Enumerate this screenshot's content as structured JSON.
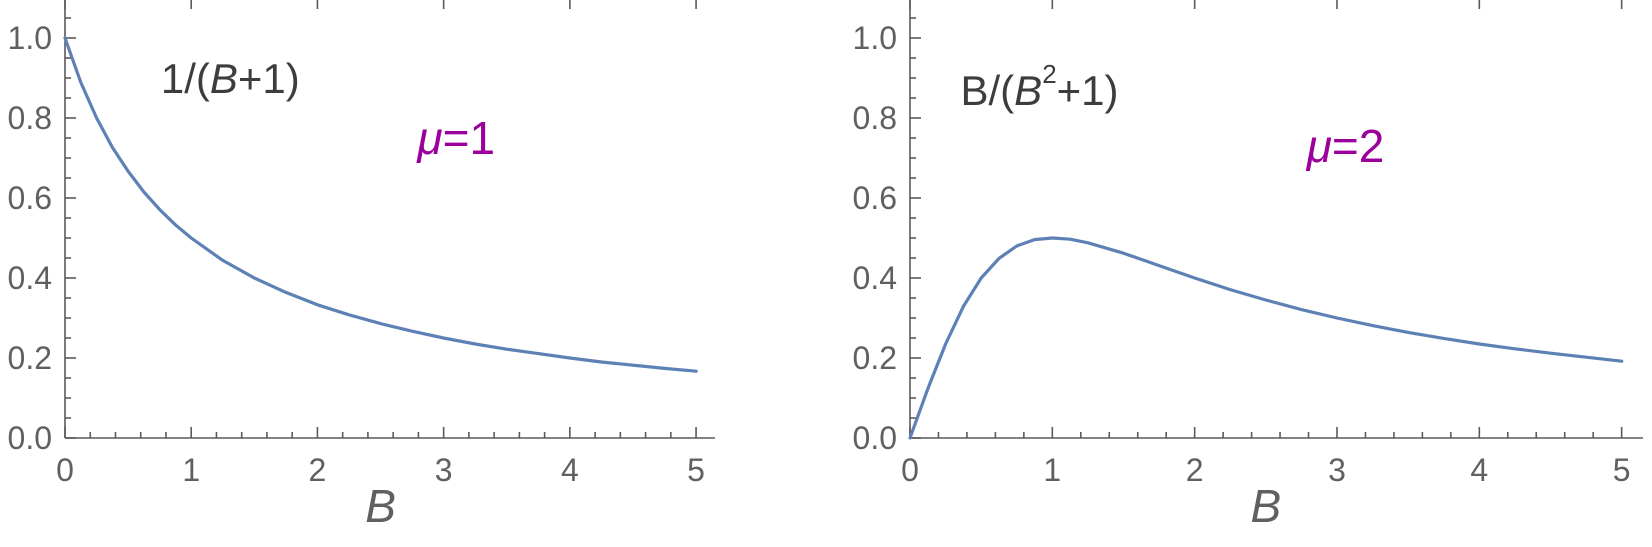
{
  "page": {
    "background": "#ffffff"
  },
  "chart_data": [
    {
      "type": "line",
      "title": "",
      "xlabel_parts": [
        {
          "t": "B",
          "italic": true
        }
      ],
      "xlim": [
        0,
        5.15
      ],
      "ylim": [
        0,
        1.05
      ],
      "grid": false,
      "legend": "none",
      "axis_color": "#5a5a5a",
      "tick_label_color": "#606060",
      "xticks": {
        "values": [
          0,
          1,
          2,
          3,
          4,
          5
        ],
        "labels": [
          "0",
          "1",
          "2",
          "3",
          "4",
          "5"
        ],
        "minor_step": 0.2
      },
      "yticks": {
        "values": [
          0,
          0.2,
          0.4,
          0.6,
          0.8,
          1.0
        ],
        "labels": [
          "0.0",
          "0.2",
          "0.4",
          "0.6",
          "0.8",
          "1.0"
        ],
        "minor_step": 0.05
      },
      "series": [
        {
          "name": "1/(B+1)",
          "color": "#5e81b5",
          "x": [
            0,
            0.125,
            0.25,
            0.375,
            0.5,
            0.625,
            0.75,
            0.875,
            1,
            1.25,
            1.5,
            1.75,
            2,
            2.25,
            2.5,
            2.75,
            3,
            3.25,
            3.5,
            3.75,
            4,
            4.25,
            4.5,
            4.75,
            5
          ],
          "y": [
            1,
            0.889,
            0.8,
            0.727,
            0.667,
            0.615,
            0.571,
            0.533,
            0.5,
            0.444,
            0.4,
            0.364,
            0.333,
            0.308,
            0.286,
            0.267,
            0.25,
            0.235,
            0.222,
            0.211,
            0.2,
            0.19,
            0.182,
            0.174,
            0.167
          ]
        }
      ],
      "annotations": [
        {
          "parts": [
            {
              "t": "1/("
            },
            {
              "t": "B",
              "italic": true
            },
            {
              "t": "+1)"
            }
          ],
          "x": 1.31,
          "y": 0.9,
          "color": "#3d3d3d",
          "size": 42
        },
        {
          "parts": [
            {
              "t": "μ",
              "italic": true
            },
            {
              "t": "=1"
            }
          ],
          "x": 3.1,
          "y": 0.75,
          "color": "#9c009c",
          "size": 46
        }
      ]
    },
    {
      "type": "line",
      "title": "",
      "xlabel_parts": [
        {
          "t": "B",
          "italic": true
        }
      ],
      "xlim": [
        0,
        5.15
      ],
      "ylim": [
        0,
        1.05
      ],
      "grid": false,
      "legend": "none",
      "axis_color": "#5a5a5a",
      "tick_label_color": "#606060",
      "xticks": {
        "values": [
          0,
          1,
          2,
          3,
          4,
          5
        ],
        "labels": [
          "0",
          "1",
          "2",
          "3",
          "4",
          "5"
        ],
        "minor_step": 0.2
      },
      "yticks": {
        "values": [
          0,
          0.2,
          0.4,
          0.6,
          0.8,
          1.0
        ],
        "labels": [
          "0.0",
          "0.2",
          "0.4",
          "0.6",
          "0.8",
          "1.0"
        ],
        "minor_step": 0.05
      },
      "series": [
        {
          "name": "B/(B^2+1)",
          "color": "#5e81b5",
          "x": [
            0,
            0.125,
            0.25,
            0.375,
            0.5,
            0.625,
            0.75,
            0.875,
            1,
            1.125,
            1.25,
            1.5,
            1.75,
            2,
            2.25,
            2.5,
            2.75,
            3,
            3.25,
            3.5,
            3.75,
            4,
            4.25,
            4.5,
            4.75,
            5
          ],
          "y": [
            0,
            0.123,
            0.235,
            0.329,
            0.4,
            0.449,
            0.48,
            0.496,
            0.5,
            0.497,
            0.488,
            0.462,
            0.431,
            0.4,
            0.371,
            0.345,
            0.321,
            0.3,
            0.281,
            0.264,
            0.249,
            0.235,
            0.223,
            0.212,
            0.202,
            0.192
          ]
        }
      ],
      "annotations": [
        {
          "parts": [
            {
              "t": "B/("
            },
            {
              "t": "B",
              "italic": true
            },
            {
              "t": "2",
              "sup": true
            },
            {
              "t": "+1)"
            }
          ],
          "x": 0.91,
          "y": 0.87,
          "color": "#3d3d3d",
          "size": 42
        },
        {
          "parts": [
            {
              "t": "μ",
              "italic": true
            },
            {
              "t": "=2"
            }
          ],
          "x": 3.06,
          "y": 0.73,
          "color": "#9c009c",
          "size": 46
        }
      ]
    }
  ]
}
